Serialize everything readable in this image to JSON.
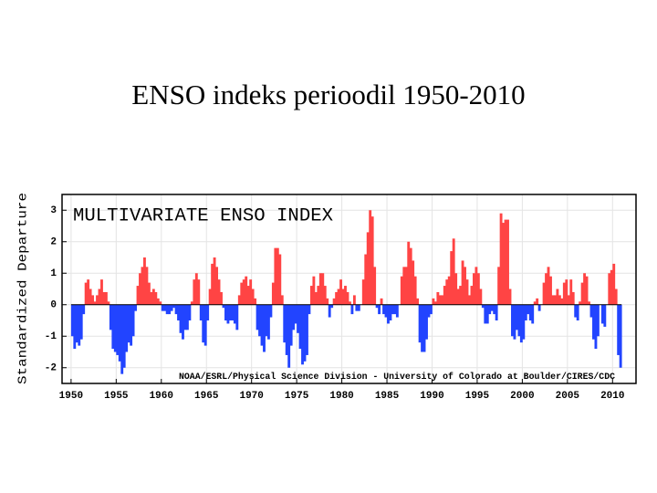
{
  "title": "ENSO indeks perioodil 1950-2010",
  "chart_data": {
    "type": "bar",
    "title": "MULTIVARIATE ENSO INDEX",
    "y_label": "Standardized Departure",
    "annotation": "NOAA/ESRL/Physical Science Division - University of Colorado at Boulder/CIRES/CDC",
    "positive_color": "#ff4444",
    "negative_color": "#2244ff",
    "grid": true,
    "xlim": [
      1949,
      2012.6
    ],
    "ylim": [
      -2.5,
      3.5
    ],
    "xticks": [
      1950,
      1955,
      1960,
      1965,
      1970,
      1975,
      1980,
      1985,
      1990,
      1995,
      2000,
      2005,
      2010
    ],
    "yticks": [
      -2,
      -1,
      0,
      1,
      2,
      3
    ],
    "x": [
      1950,
      1950.25,
      1950.5,
      1950.75,
      1951,
      1951.25,
      1951.5,
      1951.75,
      1952,
      1952.25,
      1952.5,
      1952.75,
      1953,
      1953.25,
      1953.5,
      1953.75,
      1954,
      1954.25,
      1954.5,
      1954.75,
      1955,
      1955.25,
      1955.5,
      1955.75,
      1956,
      1956.25,
      1956.5,
      1956.75,
      1957,
      1957.25,
      1957.5,
      1957.75,
      1958,
      1958.25,
      1958.5,
      1958.75,
      1959,
      1959.25,
      1959.5,
      1959.75,
      1960,
      1960.25,
      1960.5,
      1960.75,
      1961,
      1961.25,
      1961.5,
      1961.75,
      1962,
      1962.25,
      1962.5,
      1962.75,
      1963,
      1963.25,
      1963.5,
      1963.75,
      1964,
      1964.25,
      1964.5,
      1964.75,
      1965,
      1965.25,
      1965.5,
      1965.75,
      1966,
      1966.25,
      1966.5,
      1966.75,
      1967,
      1967.25,
      1967.5,
      1967.75,
      1968,
      1968.25,
      1968.5,
      1968.75,
      1969,
      1969.25,
      1969.5,
      1969.75,
      1970,
      1970.25,
      1970.5,
      1970.75,
      1971,
      1971.25,
      1971.5,
      1971.75,
      1972,
      1972.25,
      1972.5,
      1972.75,
      1973,
      1973.25,
      1973.5,
      1973.75,
      1974,
      1974.25,
      1974.5,
      1974.75,
      1975,
      1975.25,
      1975.5,
      1975.75,
      1976,
      1976.25,
      1976.5,
      1976.75,
      1977,
      1977.25,
      1977.5,
      1977.75,
      1978,
      1978.25,
      1978.5,
      1978.75,
      1979,
      1979.25,
      1979.5,
      1979.75,
      1980,
      1980.25,
      1980.5,
      1980.75,
      1981,
      1981.25,
      1981.5,
      1981.75,
      1982,
      1982.25,
      1982.5,
      1982.75,
      1983,
      1983.25,
      1983.5,
      1983.75,
      1984,
      1984.25,
      1984.5,
      1984.75,
      1985,
      1985.25,
      1985.5,
      1985.75,
      1986,
      1986.25,
      1986.5,
      1986.75,
      1987,
      1987.25,
      1987.5,
      1987.75,
      1988,
      1988.25,
      1988.5,
      1988.75,
      1989,
      1989.25,
      1989.5,
      1989.75,
      1990,
      1990.25,
      1990.5,
      1990.75,
      1991,
      1991.25,
      1991.5,
      1991.75,
      1992,
      1992.25,
      1992.5,
      1992.75,
      1993,
      1993.25,
      1993.5,
      1993.75,
      1994,
      1994.25,
      1994.5,
      1994.75,
      1995,
      1995.25,
      1995.5,
      1995.75,
      1996,
      1996.25,
      1996.5,
      1996.75,
      1997,
      1997.25,
      1997.5,
      1997.75,
      1998,
      1998.25,
      1998.5,
      1998.75,
      1999,
      1999.25,
      1999.5,
      1999.75,
      2000,
      2000.25,
      2000.5,
      2000.75,
      2001,
      2001.25,
      2001.5,
      2001.75,
      2002,
      2002.25,
      2002.5,
      2002.75,
      2003,
      2003.25,
      2003.5,
      2003.75,
      2004,
      2004.25,
      2004.5,
      2004.75,
      2005,
      2005.25,
      2005.5,
      2005.75,
      2006,
      2006.25,
      2006.5,
      2006.75,
      2007,
      2007.25,
      2007.5,
      2007.75,
      2008,
      2008.25,
      2008.5,
      2008.75,
      2009,
      2009.25,
      2009.5,
      2009.75,
      2010,
      2010.25,
      2010.5,
      2010.75
    ],
    "values": [
      -1.0,
      -1.4,
      -1.2,
      -1.3,
      -1.1,
      -0.3,
      0.7,
      0.8,
      0.5,
      0.3,
      0.1,
      0.3,
      0.5,
      0.8,
      0.4,
      0.4,
      0.1,
      -0.8,
      -1.4,
      -1.5,
      -1.6,
      -1.8,
      -2.2,
      -2.0,
      -1.5,
      -1.2,
      -1.3,
      -1.0,
      -0.2,
      0.6,
      1.0,
      1.2,
      1.5,
      1.2,
      0.7,
      0.4,
      0.5,
      0.4,
      0.2,
      0.1,
      -0.2,
      -0.2,
      -0.3,
      -0.3,
      -0.2,
      -0.1,
      -0.3,
      -0.5,
      -0.9,
      -1.1,
      -0.8,
      -0.8,
      -0.5,
      0.1,
      0.8,
      1.0,
      0.8,
      -0.5,
      -1.2,
      -1.3,
      -0.5,
      0.5,
      1.3,
      1.5,
      1.2,
      0.8,
      0.4,
      -0.1,
      -0.5,
      -0.6,
      -0.5,
      -0.5,
      -0.6,
      -0.8,
      0.3,
      0.7,
      0.8,
      0.9,
      0.6,
      0.8,
      0.5,
      0.2,
      -0.8,
      -1.0,
      -1.3,
      -1.5,
      -1.0,
      -1.1,
      -0.4,
      0.7,
      1.8,
      1.8,
      1.6,
      0.3,
      -1.2,
      -1.6,
      -2.0,
      -1.3,
      -0.8,
      -0.6,
      -0.9,
      -1.4,
      -1.9,
      -1.8,
      -1.6,
      -0.3,
      0.6,
      0.9,
      0.4,
      0.6,
      1.0,
      1.0,
      0.6,
      0.2,
      -0.4,
      -0.1,
      0.2,
      0.4,
      0.5,
      0.8,
      0.5,
      0.6,
      0.4,
      0.1,
      -0.3,
      0.3,
      -0.2,
      -0.2,
      0.0,
      0.8,
      1.6,
      2.3,
      3.0,
      2.8,
      1.2,
      -0.1,
      -0.3,
      0.2,
      -0.3,
      -0.4,
      -0.6,
      -0.5,
      -0.3,
      -0.3,
      -0.4,
      0.0,
      0.9,
      1.2,
      1.2,
      2.0,
      1.8,
      1.4,
      0.9,
      0.2,
      -1.2,
      -1.5,
      -1.5,
      -1.1,
      -0.4,
      -0.3,
      0.2,
      0.1,
      0.4,
      0.3,
      0.3,
      0.6,
      0.8,
      0.9,
      1.7,
      2.1,
      1.0,
      0.5,
      0.6,
      1.4,
      1.2,
      0.8,
      0.3,
      0.6,
      1.0,
      1.2,
      1.0,
      0.5,
      -0.1,
      -0.6,
      -0.6,
      -0.3,
      -0.2,
      -0.3,
      -0.5,
      1.2,
      2.9,
      2.6,
      2.7,
      2.7,
      0.5,
      -1.0,
      -1.1,
      -0.8,
      -1.0,
      -1.2,
      -1.1,
      -0.5,
      -0.3,
      -0.5,
      -0.6,
      0.1,
      0.2,
      -0.2,
      0.0,
      0.7,
      1.0,
      1.2,
      0.9,
      0.3,
      0.3,
      0.5,
      0.3,
      0.2,
      0.7,
      0.8,
      0.3,
      0.8,
      0.4,
      -0.4,
      -0.5,
      0.1,
      0.7,
      1.0,
      0.9,
      0.1,
      -0.4,
      -1.1,
      -1.4,
      -1.0,
      0.0,
      -0.6,
      -0.7,
      0.0,
      1.0,
      1.1,
      1.3,
      0.5,
      -1.6,
      -2.0
    ]
  }
}
